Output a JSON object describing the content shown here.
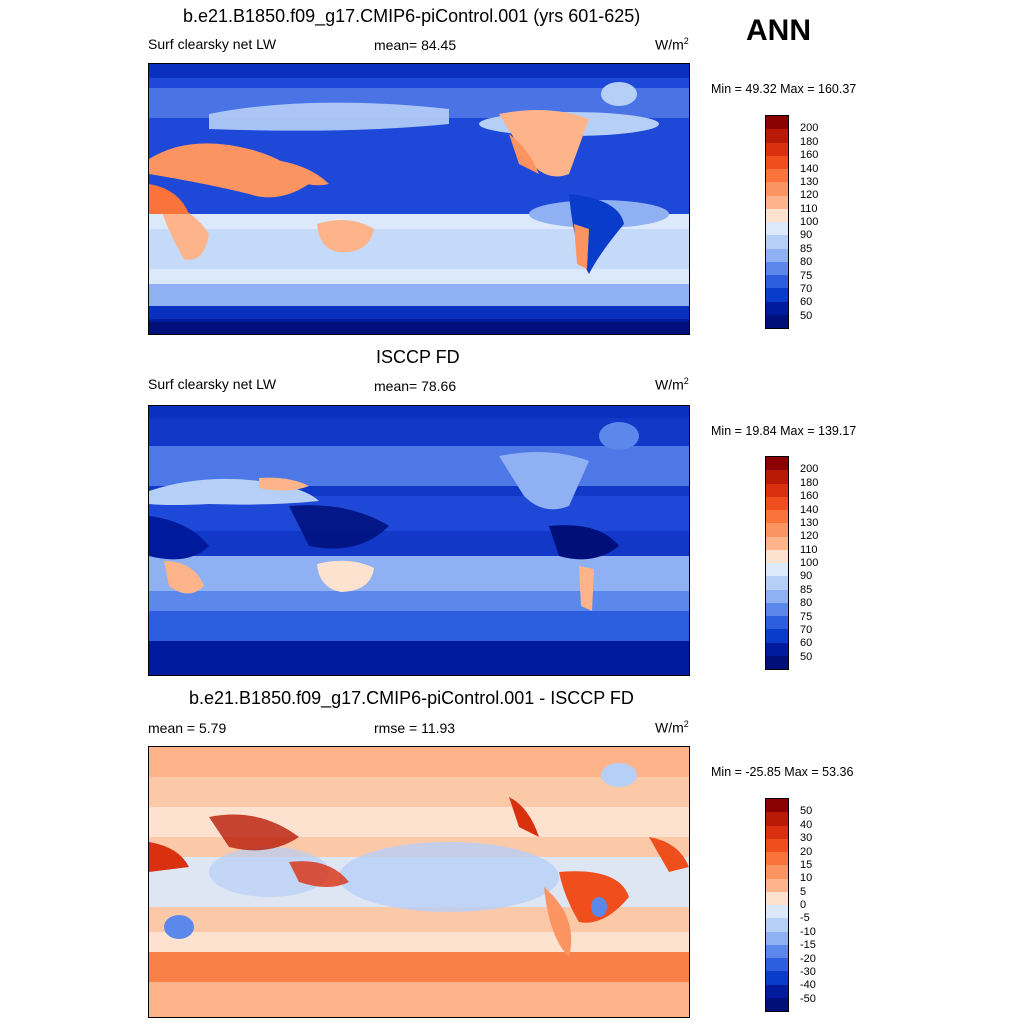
{
  "season": "ANN",
  "units_main": "W/m",
  "units_sup": "2",
  "panels": [
    {
      "title": "b.e21.B1850.f09_g17.CMIP6-piControl.001 (yrs 601-625)",
      "left_label": "Surf clearsky net LW",
      "center_label": "mean=  84.45",
      "minmax": "Min =  49.32 Max = 160.37",
      "colorbar_labels": [
        "200",
        "180",
        "160",
        "140",
        "130",
        "120",
        "110",
        "100",
        "90",
        "85",
        "80",
        "75",
        "70",
        "60",
        "50"
      ]
    },
    {
      "title": "ISCCP FD",
      "left_label": "Surf clearsky net LW",
      "center_label": "mean=  78.66",
      "minmax": "Min =  19.84 Max = 139.17",
      "colorbar_labels": [
        "200",
        "180",
        "160",
        "140",
        "130",
        "120",
        "110",
        "100",
        "90",
        "85",
        "80",
        "75",
        "70",
        "60",
        "50"
      ]
    },
    {
      "title": "b.e21.B1850.f09_g17.CMIP6-piControl.001 - ISCCP FD",
      "left_label": "mean =   5.79",
      "center_label": "rmse =  11.93",
      "minmax": "Min = -25.85 Max =  53.36",
      "colorbar_labels": [
        "50",
        "40",
        "30",
        "20",
        "15",
        "10",
        "5",
        "0",
        "-5",
        "-10",
        "-15",
        "-20",
        "-30",
        "-40",
        "-50"
      ]
    }
  ],
  "colors": {
    "colorbar": [
      "#8b0000",
      "#b81a06",
      "#d9300f",
      "#ef4f1c",
      "#f9733a",
      "#fb9460",
      "#fdb48a",
      "#fde3cf",
      "#dbe9fb",
      "#b6cff7",
      "#8fb0f3",
      "#5c88ec",
      "#2d5ee0",
      "#0a3ccb",
      "#001a9e",
      "#000f7a"
    ],
    "ocean_model": "#1e48d8",
    "ocean_obs": "#1238c8",
    "diff_base": "#fcc9a8"
  }
}
